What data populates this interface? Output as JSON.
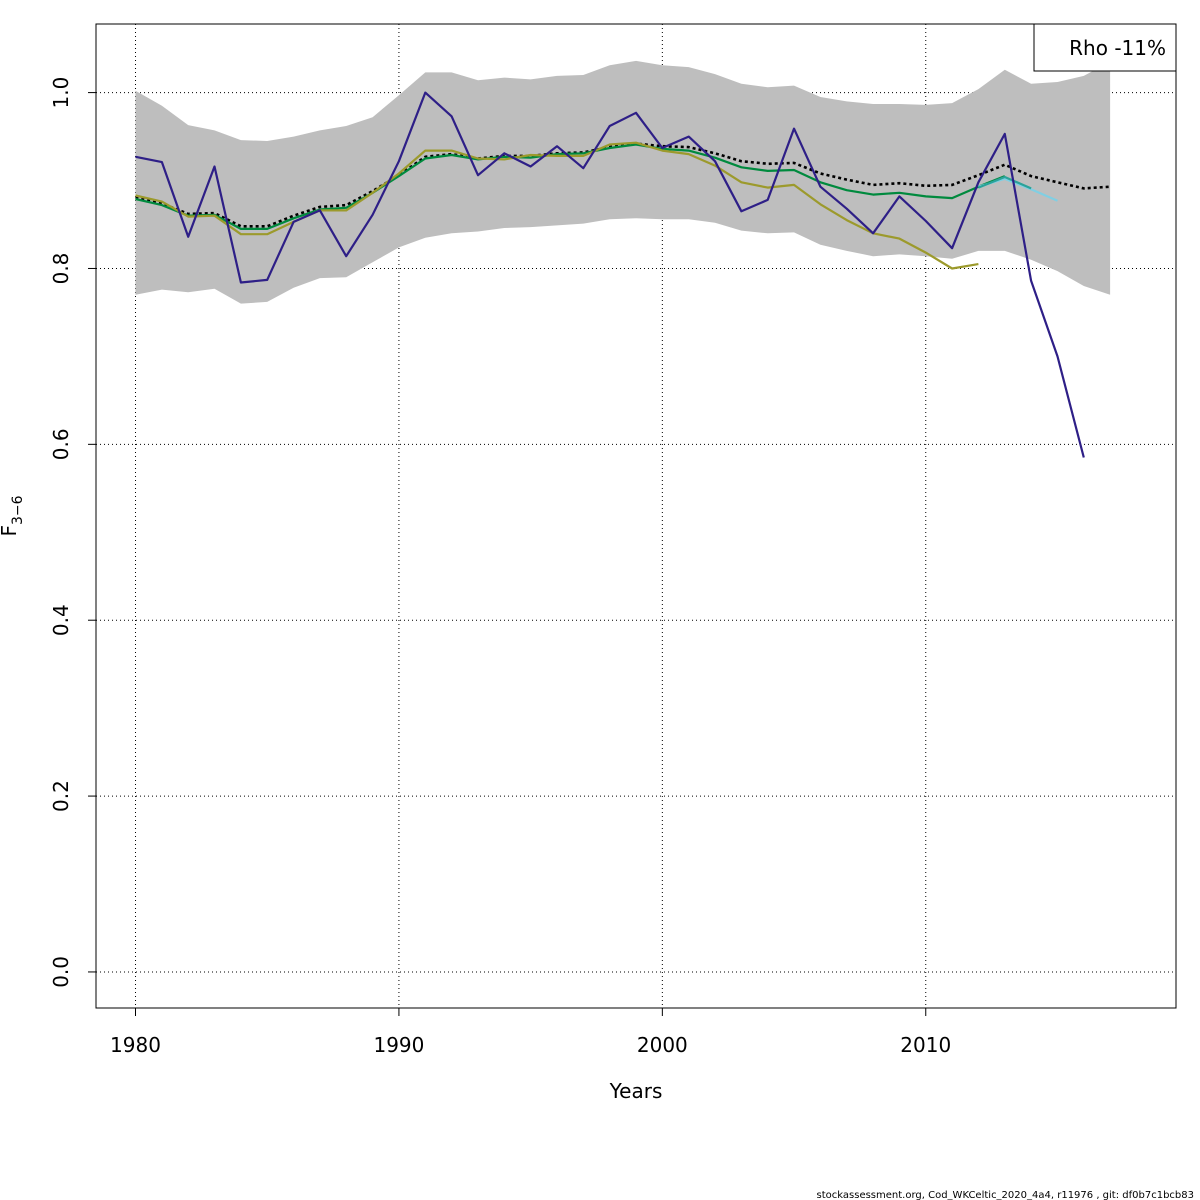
{
  "chart_data": {
    "type": "line",
    "xlabel": "Years",
    "ylabel_main": "F",
    "ylabel_sub": "3−6",
    "xlim": [
      1978.5,
      2019.5
    ],
    "ylim": [
      -0.041,
      1.078
    ],
    "x_ticks": [
      1980,
      1990,
      2000,
      2010
    ],
    "y_ticks": [
      0.0,
      0.2,
      0.4,
      0.6,
      0.8,
      1.0
    ],
    "x_tick_labels": [
      "1980",
      "1990",
      "2000",
      "2010"
    ],
    "y_tick_labels": [
      "0.0",
      "0.2",
      "0.4",
      "0.6",
      "0.8",
      "1.0"
    ],
    "grid": true,
    "legend": {
      "position": "top-right",
      "text": "Rho -11%"
    },
    "footer": "stockassessment.org, Cod_WKCeltic_2020_4a4, r11976 , git: df0b7c1bcb83",
    "band": {
      "color": "#bebebe",
      "x": [
        1980,
        1981,
        1982,
        1983,
        1984,
        1985,
        1986,
        1987,
        1988,
        1989,
        1990,
        1991,
        1992,
        1993,
        1994,
        1995,
        1996,
        1997,
        1998,
        1999,
        2000,
        2001,
        2002,
        2003,
        2004,
        2005,
        2006,
        2007,
        2008,
        2009,
        2010,
        2011,
        2012,
        2013,
        2014,
        2015,
        2016,
        2017
      ],
      "upper": [
        1.002,
        0.985,
        0.963,
        0.957,
        0.946,
        0.945,
        0.95,
        0.957,
        0.962,
        0.972,
        0.997,
        1.023,
        1.023,
        1.014,
        1.017,
        1.015,
        1.019,
        1.02,
        1.031,
        1.036,
        1.031,
        1.029,
        1.021,
        1.01,
        1.006,
        1.008,
        0.995,
        0.99,
        0.987,
        0.987,
        0.986,
        0.988,
        1.004,
        1.026,
        1.01,
        1.012,
        1.019,
        1.035
      ],
      "lower": [
        0.77,
        0.776,
        0.773,
        0.777,
        0.76,
        0.762,
        0.778,
        0.789,
        0.79,
        0.807,
        0.824,
        0.835,
        0.84,
        0.842,
        0.846,
        0.847,
        0.849,
        0.851,
        0.856,
        0.857,
        0.856,
        0.856,
        0.852,
        0.843,
        0.84,
        0.841,
        0.827,
        0.82,
        0.814,
        0.816,
        0.814,
        0.811,
        0.82,
        0.82,
        0.81,
        0.797,
        0.78,
        0.77
      ]
    },
    "series": [
      {
        "color": "#000000",
        "dashed": true,
        "x": [
          1980,
          1981,
          1982,
          1983,
          1984,
          1985,
          1986,
          1987,
          1988,
          1989,
          1990,
          1991,
          1992,
          1993,
          1994,
          1995,
          1996,
          1997,
          1998,
          1999,
          2000,
          2001,
          2002,
          2003,
          2004,
          2005,
          2006,
          2007,
          2008,
          2009,
          2010,
          2011,
          2012,
          2013,
          2014,
          2015,
          2016,
          2017
        ],
        "values": [
          0.881,
          0.874,
          0.862,
          0.863,
          0.848,
          0.848,
          0.86,
          0.87,
          0.872,
          0.888,
          0.906,
          0.927,
          0.93,
          0.925,
          0.928,
          0.928,
          0.931,
          0.932,
          0.938,
          0.942,
          0.939,
          0.938,
          0.931,
          0.922,
          0.919,
          0.92,
          0.908,
          0.901,
          0.895,
          0.897,
          0.894,
          0.895,
          0.906,
          0.918,
          0.905,
          0.898,
          0.891,
          0.893
        ]
      },
      {
        "color": "#008a3e",
        "dashed": false,
        "x": [
          1980,
          1981,
          1982,
          1983,
          1984,
          1985,
          1986,
          1987,
          1988,
          1989,
          1990,
          1991,
          1992,
          1993,
          1994,
          1995,
          1996,
          1997,
          1998,
          1999,
          2000,
          2001,
          2002,
          2003,
          2004,
          2005,
          2006,
          2007,
          2008,
          2009,
          2010,
          2011,
          2012,
          2013
        ],
        "values": [
          0.879,
          0.872,
          0.86,
          0.861,
          0.845,
          0.845,
          0.857,
          0.867,
          0.869,
          0.886,
          0.905,
          0.925,
          0.929,
          0.924,
          0.927,
          0.926,
          0.93,
          0.931,
          0.937,
          0.941,
          0.936,
          0.934,
          0.926,
          0.915,
          0.911,
          0.912,
          0.898,
          0.889,
          0.884,
          0.886,
          0.882,
          0.88,
          0.893,
          0.905
        ]
      },
      {
        "color": "#80cfe3",
        "dashed": false,
        "x": [
          2012,
          2013,
          2014,
          2015
        ],
        "values": [
          0.893,
          0.902,
          0.89,
          0.877
        ]
      },
      {
        "color": "#2aa39a",
        "dashed": false,
        "x": [
          2012,
          2013,
          2014
        ],
        "values": [
          0.892,
          0.904,
          0.891
        ]
      },
      {
        "color": "#9c9a2c",
        "dashed": false,
        "x": [
          1980,
          1981,
          1982,
          1983,
          1984,
          1985,
          1986,
          1987,
          1988,
          1989,
          1990,
          1991,
          1992,
          1993,
          1994,
          1995,
          1996,
          1997,
          1998,
          1999,
          2000,
          2001,
          2002,
          2003,
          2004,
          2005,
          2006,
          2007,
          2008,
          2009,
          2010,
          2011,
          2012
        ],
        "values": [
          0.883,
          0.876,
          0.859,
          0.86,
          0.839,
          0.839,
          0.853,
          0.866,
          0.866,
          0.886,
          0.908,
          0.934,
          0.934,
          0.925,
          0.924,
          0.929,
          0.928,
          0.928,
          0.941,
          0.943,
          0.934,
          0.93,
          0.917,
          0.898,
          0.892,
          0.895,
          0.873,
          0.855,
          0.84,
          0.834,
          0.818,
          0.8,
          0.805
        ]
      },
      {
        "color": "#2e1f87",
        "dashed": false,
        "x": [
          1980,
          1981,
          1982,
          1983,
          1984,
          1985,
          1986,
          1987,
          1988,
          1989,
          1990,
          1991,
          1992,
          1993,
          1994,
          1995,
          1996,
          1997,
          1998,
          1999,
          2000,
          2001,
          2002,
          2003,
          2004,
          2005,
          2006,
          2007,
          2008,
          2009,
          2010,
          2011,
          2012,
          2013,
          2014,
          2015,
          2016
        ],
        "values": [
          0.927,
          0.921,
          0.836,
          0.916,
          0.784,
          0.787,
          0.853,
          0.866,
          0.814,
          0.861,
          0.922,
          1.0,
          0.973,
          0.906,
          0.931,
          0.916,
          0.939,
          0.914,
          0.962,
          0.977,
          0.937,
          0.95,
          0.922,
          0.865,
          0.878,
          0.959,
          0.893,
          0.868,
          0.84,
          0.882,
          0.854,
          0.823,
          0.898,
          0.953,
          0.786,
          0.7,
          0.585
        ]
      }
    ]
  }
}
